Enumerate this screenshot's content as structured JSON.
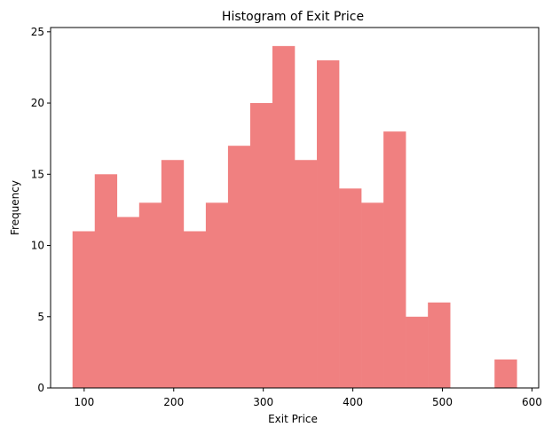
{
  "chart_data": {
    "type": "bar",
    "title": "Histogram of Exit Price",
    "xlabel": "Exit Price",
    "ylabel": "Frequency",
    "bin_start": 87,
    "bin_width": 24.8,
    "values": [
      11,
      15,
      12,
      13,
      16,
      11,
      13,
      17,
      20,
      24,
      16,
      23,
      14,
      13,
      18,
      5,
      6,
      0,
      0,
      2
    ],
    "xlim": [
      62.5,
      607.5
    ],
    "ylim": [
      0,
      25.3
    ],
    "xticks": [
      100,
      200,
      300,
      400,
      500,
      600
    ],
    "yticks": [
      0,
      5,
      10,
      15,
      20,
      25
    ],
    "bar_color": "#f08080",
    "grid": false
  }
}
